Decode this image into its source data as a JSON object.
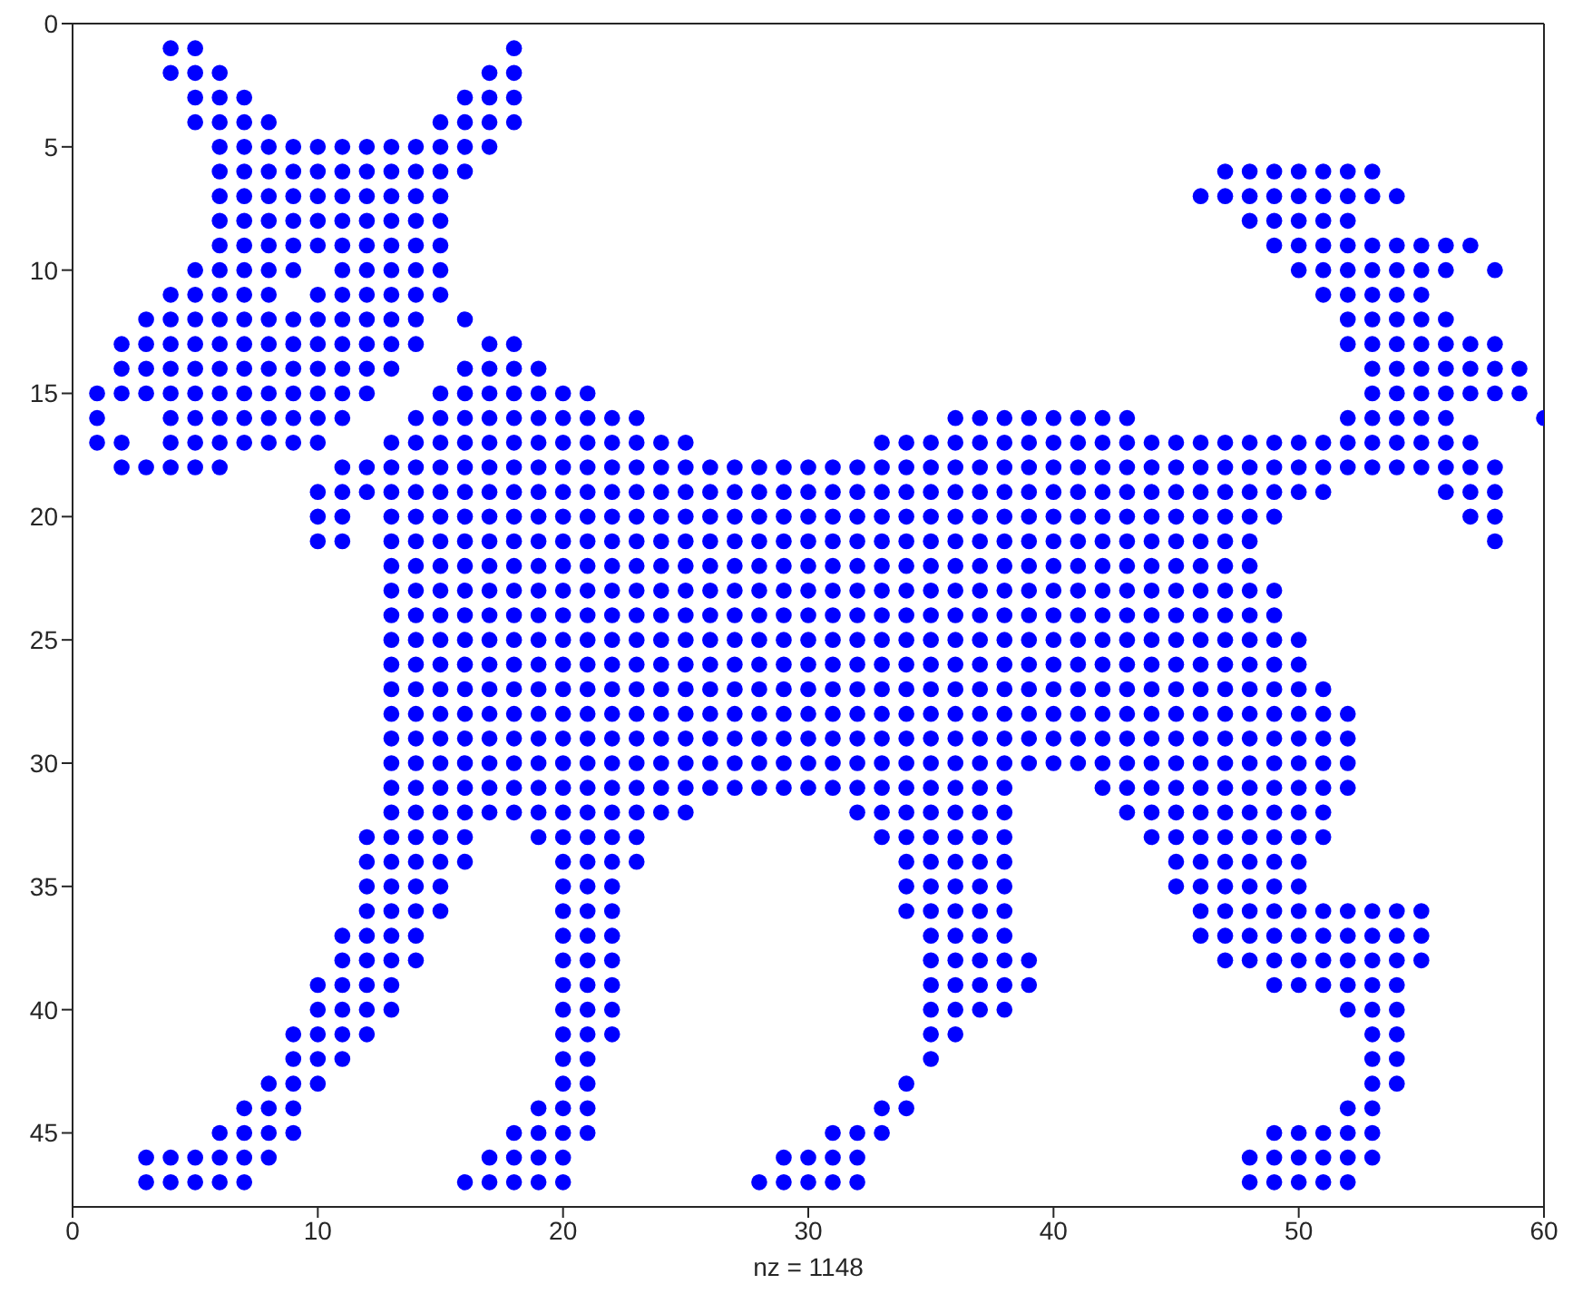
{
  "chart_data": {
    "type": "scatter",
    "xlabel": "nz = 1148",
    "xlim": [
      0,
      60
    ],
    "ylim": [
      48,
      0
    ],
    "xticks": [
      0,
      10,
      20,
      30,
      40,
      50,
      60
    ],
    "yticks": [
      0,
      5,
      10,
      15,
      20,
      25,
      30,
      35,
      40,
      45
    ],
    "marker": "circle",
    "series": [
      {
        "color": "#0000ff",
        "x": [
          4,
          5,
          18
        ],
        "values": [
          1,
          1,
          1
        ]
      },
      {
        "color": "#0000ff",
        "x": [
          4,
          5,
          6,
          17,
          18
        ],
        "values": [
          2,
          2,
          2,
          2,
          2
        ]
      },
      {
        "color": "#0000ff",
        "x": [
          5,
          6,
          7,
          16,
          17,
          18
        ],
        "values": [
          3,
          3,
          3,
          3,
          3,
          3
        ]
      },
      {
        "color": "#0000ff",
        "x": [
          5,
          6,
          7,
          8,
          15,
          16,
          17,
          18
        ],
        "values": [
          4,
          4,
          4,
          4,
          4,
          4,
          4,
          4
        ]
      },
      {
        "color": "#0000ff",
        "x": [
          6,
          7,
          8,
          9,
          10,
          11,
          12,
          13,
          14,
          15,
          16,
          17
        ],
        "values": [
          5,
          5,
          5,
          5,
          5,
          5,
          5,
          5,
          5,
          5,
          5,
          5
        ]
      },
      {
        "color": "#0000ff",
        "x": [
          6,
          7,
          8,
          9,
          10,
          11,
          12,
          13,
          14,
          15,
          16,
          47,
          48,
          49,
          50,
          51,
          52,
          53
        ],
        "values": [
          6,
          6,
          6,
          6,
          6,
          6,
          6,
          6,
          6,
          6,
          6,
          6,
          6,
          6,
          6,
          6,
          6,
          6
        ]
      },
      {
        "color": "#0000ff",
        "x": [
          6,
          7,
          8,
          9,
          10,
          11,
          12,
          13,
          14,
          15,
          46,
          47,
          48,
          49,
          50,
          51,
          52,
          53,
          54
        ],
        "values": [
          7,
          7,
          7,
          7,
          7,
          7,
          7,
          7,
          7,
          7,
          7,
          7,
          7,
          7,
          7,
          7,
          7,
          7,
          7
        ]
      },
      {
        "color": "#0000ff",
        "x": [
          6,
          7,
          8,
          9,
          10,
          11,
          12,
          13,
          14,
          15,
          48,
          49,
          50,
          51,
          52
        ],
        "values": [
          8,
          8,
          8,
          8,
          8,
          8,
          8,
          8,
          8,
          8,
          8,
          8,
          8,
          8,
          8
        ]
      },
      {
        "color": "#0000ff",
        "x": [
          6,
          7,
          8,
          9,
          10,
          11,
          12,
          13,
          14,
          15,
          49,
          50,
          51,
          52,
          53,
          54,
          55,
          56,
          57
        ],
        "values": [
          9,
          9,
          9,
          9,
          9,
          9,
          9,
          9,
          9,
          9,
          9,
          9,
          9,
          9,
          9,
          9,
          9,
          9,
          9
        ]
      },
      {
        "color": "#0000ff",
        "x": [
          5,
          6,
          7,
          8,
          9,
          11,
          12,
          13,
          14,
          15,
          50,
          51,
          52,
          53,
          54,
          55,
          56,
          58
        ],
        "values": [
          10,
          10,
          10,
          10,
          10,
          10,
          10,
          10,
          10,
          10,
          10,
          10,
          10,
          10,
          10,
          10,
          10,
          10
        ]
      },
      {
        "color": "#0000ff",
        "x": [
          4,
          5,
          6,
          7,
          8,
          10,
          11,
          12,
          13,
          14,
          15,
          51,
          52,
          53,
          54,
          55
        ],
        "values": [
          11,
          11,
          11,
          11,
          11,
          11,
          11,
          11,
          11,
          11,
          11,
          11,
          11,
          11,
          11,
          11
        ]
      },
      {
        "color": "#0000ff",
        "x": [
          3,
          4,
          5,
          6,
          7,
          8,
          9,
          10,
          11,
          12,
          13,
          14,
          16,
          52,
          53,
          54,
          55,
          56
        ],
        "values": [
          12,
          12,
          12,
          12,
          12,
          12,
          12,
          12,
          12,
          12,
          12,
          12,
          12,
          12,
          12,
          12,
          12,
          12
        ]
      },
      {
        "color": "#0000ff",
        "x": [
          2,
          3,
          4,
          5,
          6,
          7,
          8,
          9,
          10,
          11,
          12,
          13,
          14,
          17,
          18,
          52,
          53,
          54,
          55,
          56,
          57,
          58
        ],
        "values": [
          13,
          13,
          13,
          13,
          13,
          13,
          13,
          13,
          13,
          13,
          13,
          13,
          13,
          13,
          13,
          13,
          13,
          13,
          13,
          13,
          13,
          13
        ]
      },
      {
        "color": "#0000ff",
        "x": [
          2,
          3,
          4,
          5,
          6,
          7,
          8,
          9,
          10,
          11,
          12,
          13,
          16,
          17,
          18,
          19,
          53,
          54,
          55,
          56,
          57,
          58,
          59
        ],
        "values": [
          14,
          14,
          14,
          14,
          14,
          14,
          14,
          14,
          14,
          14,
          14,
          14,
          14,
          14,
          14,
          14,
          14,
          14,
          14,
          14,
          14,
          14,
          14
        ]
      },
      {
        "color": "#0000ff",
        "x": [
          1,
          2,
          3,
          4,
          5,
          6,
          7,
          8,
          9,
          10,
          11,
          12,
          15,
          16,
          17,
          18,
          19,
          20,
          21,
          53,
          54,
          55,
          56,
          57,
          58,
          59
        ],
        "values": [
          15,
          15,
          15,
          15,
          15,
          15,
          15,
          15,
          15,
          15,
          15,
          15,
          15,
          15,
          15,
          15,
          15,
          15,
          15,
          15,
          15,
          15,
          15,
          15,
          15,
          15
        ]
      },
      {
        "color": "#0000ff",
        "x": [
          1,
          4,
          5,
          6,
          7,
          8,
          9,
          10,
          11,
          14,
          15,
          16,
          17,
          18,
          19,
          20,
          21,
          22,
          23,
          36,
          37,
          38,
          39,
          40,
          41,
          42,
          43,
          52,
          53,
          54,
          55,
          56,
          60
        ],
        "values": [
          16,
          16,
          16,
          16,
          16,
          16,
          16,
          16,
          16,
          16,
          16,
          16,
          16,
          16,
          16,
          16,
          16,
          16,
          16,
          16,
          16,
          16,
          16,
          16,
          16,
          16,
          16,
          16,
          16,
          16,
          16,
          16,
          16
        ]
      },
      {
        "color": "#0000ff",
        "x": [
          1,
          2,
          4,
          5,
          6,
          7,
          8,
          9,
          10,
          13,
          14,
          15,
          16,
          17,
          18,
          19,
          20,
          21,
          22,
          23,
          24,
          25,
          33,
          34,
          35,
          36,
          37,
          38,
          39,
          40,
          41,
          42,
          43,
          44,
          45,
          46,
          47,
          48,
          49,
          50,
          51,
          52,
          53,
          54,
          55,
          56,
          57
        ],
        "values": [
          17,
          17,
          17,
          17,
          17,
          17,
          17,
          17,
          17,
          17,
          17,
          17,
          17,
          17,
          17,
          17,
          17,
          17,
          17,
          17,
          17,
          17,
          17,
          17,
          17,
          17,
          17,
          17,
          17,
          17,
          17,
          17,
          17,
          17,
          17,
          17,
          17,
          17,
          17,
          17,
          17,
          17,
          17,
          17,
          17,
          17,
          17
        ]
      },
      {
        "color": "#0000ff",
        "x": [
          2,
          3,
          4,
          5,
          6,
          11,
          12,
          13,
          14,
          15,
          16,
          17,
          18,
          19,
          20,
          21,
          22,
          23,
          24,
          25,
          26,
          27,
          28,
          29,
          30,
          31,
          32,
          33,
          34,
          35,
          36,
          37,
          38,
          39,
          40,
          41,
          42,
          43,
          44,
          45,
          46,
          47,
          48,
          49,
          50,
          51,
          52,
          53,
          54,
          55,
          56,
          57,
          58
        ],
        "values": [
          18,
          18,
          18,
          18,
          18,
          18,
          18,
          18,
          18,
          18,
          18,
          18,
          18,
          18,
          18,
          18,
          18,
          18,
          18,
          18,
          18,
          18,
          18,
          18,
          18,
          18,
          18,
          18,
          18,
          18,
          18,
          18,
          18,
          18,
          18,
          18,
          18,
          18,
          18,
          18,
          18,
          18,
          18,
          18,
          18,
          18,
          18,
          18,
          18,
          18,
          18,
          18,
          18
        ]
      },
      {
        "color": "#0000ff",
        "x": [
          10,
          11,
          12,
          13,
          14,
          15,
          16,
          17,
          18,
          19,
          20,
          21,
          22,
          23,
          24,
          25,
          26,
          27,
          28,
          29,
          30,
          31,
          32,
          33,
          34,
          35,
          36,
          37,
          38,
          39,
          40,
          41,
          42,
          43,
          44,
          45,
          46,
          47,
          48,
          49,
          50,
          51,
          56,
          57,
          58
        ],
        "values": [
          19,
          19,
          19,
          19,
          19,
          19,
          19,
          19,
          19,
          19,
          19,
          19,
          19,
          19,
          19,
          19,
          19,
          19,
          19,
          19,
          19,
          19,
          19,
          19,
          19,
          19,
          19,
          19,
          19,
          19,
          19,
          19,
          19,
          19,
          19,
          19,
          19,
          19,
          19,
          19,
          19,
          19,
          19,
          19,
          19
        ]
      },
      {
        "color": "#0000ff",
        "x": [
          10,
          11,
          13,
          14,
          15,
          16,
          17,
          18,
          19,
          20,
          21,
          22,
          23,
          24,
          25,
          26,
          27,
          28,
          29,
          30,
          31,
          32,
          33,
          34,
          35,
          36,
          37,
          38,
          39,
          40,
          41,
          42,
          43,
          44,
          45,
          46,
          47,
          48,
          49,
          57,
          58
        ],
        "values": [
          20,
          20,
          20,
          20,
          20,
          20,
          20,
          20,
          20,
          20,
          20,
          20,
          20,
          20,
          20,
          20,
          20,
          20,
          20,
          20,
          20,
          20,
          20,
          20,
          20,
          20,
          20,
          20,
          20,
          20,
          20,
          20,
          20,
          20,
          20,
          20,
          20,
          20,
          20,
          20,
          20
        ]
      },
      {
        "color": "#0000ff",
        "x": [
          10,
          11,
          13,
          14,
          15,
          16,
          17,
          18,
          19,
          20,
          21,
          22,
          23,
          24,
          25,
          26,
          27,
          28,
          29,
          30,
          31,
          32,
          33,
          34,
          35,
          36,
          37,
          38,
          39,
          40,
          41,
          42,
          43,
          44,
          45,
          46,
          47,
          48,
          58
        ],
        "values": [
          21,
          21,
          21,
          21,
          21,
          21,
          21,
          21,
          21,
          21,
          21,
          21,
          21,
          21,
          21,
          21,
          21,
          21,
          21,
          21,
          21,
          21,
          21,
          21,
          21,
          21,
          21,
          21,
          21,
          21,
          21,
          21,
          21,
          21,
          21,
          21,
          21,
          21,
          21
        ]
      },
      {
        "color": "#0000ff",
        "x": [
          13,
          14,
          15,
          16,
          17,
          18,
          19,
          20,
          21,
          22,
          23,
          24,
          25,
          26,
          27,
          28,
          29,
          30,
          31,
          32,
          33,
          34,
          35,
          36,
          37,
          38,
          39,
          40,
          41,
          42,
          43,
          44,
          45,
          46,
          47,
          48
        ],
        "values": [
          22,
          22,
          22,
          22,
          22,
          22,
          22,
          22,
          22,
          22,
          22,
          22,
          22,
          22,
          22,
          22,
          22,
          22,
          22,
          22,
          22,
          22,
          22,
          22,
          22,
          22,
          22,
          22,
          22,
          22,
          22,
          22,
          22,
          22,
          22,
          22
        ]
      },
      {
        "color": "#0000ff",
        "x": [
          13,
          14,
          15,
          16,
          17,
          18,
          19,
          20,
          21,
          22,
          23,
          24,
          25,
          26,
          27,
          28,
          29,
          30,
          31,
          32,
          33,
          34,
          35,
          36,
          37,
          38,
          39,
          40,
          41,
          42,
          43,
          44,
          45,
          46,
          47,
          48,
          49
        ],
        "values": [
          23,
          23,
          23,
          23,
          23,
          23,
          23,
          23,
          23,
          23,
          23,
          23,
          23,
          23,
          23,
          23,
          23,
          23,
          23,
          23,
          23,
          23,
          23,
          23,
          23,
          23,
          23,
          23,
          23,
          23,
          23,
          23,
          23,
          23,
          23,
          23,
          23
        ]
      },
      {
        "color": "#0000ff",
        "x": [
          13,
          14,
          15,
          16,
          17,
          18,
          19,
          20,
          21,
          22,
          23,
          24,
          25,
          26,
          27,
          28,
          29,
          30,
          31,
          32,
          33,
          34,
          35,
          36,
          37,
          38,
          39,
          40,
          41,
          42,
          43,
          44,
          45,
          46,
          47,
          48,
          49
        ],
        "values": [
          24,
          24,
          24,
          24,
          24,
          24,
          24,
          24,
          24,
          24,
          24,
          24,
          24,
          24,
          24,
          24,
          24,
          24,
          24,
          24,
          24,
          24,
          24,
          24,
          24,
          24,
          24,
          24,
          24,
          24,
          24,
          24,
          24,
          24,
          24,
          24,
          24
        ]
      },
      {
        "color": "#0000ff",
        "x": [
          13,
          14,
          15,
          16,
          17,
          18,
          19,
          20,
          21,
          22,
          23,
          24,
          25,
          26,
          27,
          28,
          29,
          30,
          31,
          32,
          33,
          34,
          35,
          36,
          37,
          38,
          39,
          40,
          41,
          42,
          43,
          44,
          45,
          46,
          47,
          48,
          49,
          50
        ],
        "values": [
          25,
          25,
          25,
          25,
          25,
          25,
          25,
          25,
          25,
          25,
          25,
          25,
          25,
          25,
          25,
          25,
          25,
          25,
          25,
          25,
          25,
          25,
          25,
          25,
          25,
          25,
          25,
          25,
          25,
          25,
          25,
          25,
          25,
          25,
          25,
          25,
          25,
          25
        ]
      },
      {
        "color": "#0000ff",
        "x": [
          13,
          14,
          15,
          16,
          17,
          18,
          19,
          20,
          21,
          22,
          23,
          24,
          25,
          26,
          27,
          28,
          29,
          30,
          31,
          32,
          33,
          34,
          35,
          36,
          37,
          38,
          39,
          40,
          41,
          42,
          43,
          44,
          45,
          46,
          47,
          48,
          49,
          50
        ],
        "values": [
          26,
          26,
          26,
          26,
          26,
          26,
          26,
          26,
          26,
          26,
          26,
          26,
          26,
          26,
          26,
          26,
          26,
          26,
          26,
          26,
          26,
          26,
          26,
          26,
          26,
          26,
          26,
          26,
          26,
          26,
          26,
          26,
          26,
          26,
          26,
          26,
          26,
          26
        ]
      },
      {
        "color": "#0000ff",
        "x": [
          13,
          14,
          15,
          16,
          17,
          18,
          19,
          20,
          21,
          22,
          23,
          24,
          25,
          26,
          27,
          28,
          29,
          30,
          31,
          32,
          33,
          34,
          35,
          36,
          37,
          38,
          39,
          40,
          41,
          42,
          43,
          44,
          45,
          46,
          47,
          48,
          49,
          50,
          51
        ],
        "values": [
          27,
          27,
          27,
          27,
          27,
          27,
          27,
          27,
          27,
          27,
          27,
          27,
          27,
          27,
          27,
          27,
          27,
          27,
          27,
          27,
          27,
          27,
          27,
          27,
          27,
          27,
          27,
          27,
          27,
          27,
          27,
          27,
          27,
          27,
          27,
          27,
          27,
          27,
          27
        ]
      },
      {
        "color": "#0000ff",
        "x": [
          13,
          14,
          15,
          16,
          17,
          18,
          19,
          20,
          21,
          22,
          23,
          24,
          25,
          26,
          27,
          28,
          29,
          30,
          31,
          32,
          33,
          34,
          35,
          36,
          37,
          38,
          39,
          40,
          41,
          42,
          43,
          44,
          45,
          46,
          47,
          48,
          49,
          50,
          51,
          52
        ],
        "values": [
          28,
          28,
          28,
          28,
          28,
          28,
          28,
          28,
          28,
          28,
          28,
          28,
          28,
          28,
          28,
          28,
          28,
          28,
          28,
          28,
          28,
          28,
          28,
          28,
          28,
          28,
          28,
          28,
          28,
          28,
          28,
          28,
          28,
          28,
          28,
          28,
          28,
          28,
          28,
          28
        ]
      },
      {
        "color": "#0000ff",
        "x": [
          13,
          14,
          15,
          16,
          17,
          18,
          19,
          20,
          21,
          22,
          23,
          24,
          25,
          26,
          27,
          28,
          29,
          30,
          31,
          32,
          33,
          34,
          35,
          36,
          37,
          38,
          39,
          40,
          41,
          42,
          43,
          44,
          45,
          46,
          47,
          48,
          49,
          50,
          51,
          52
        ],
        "values": [
          29,
          29,
          29,
          29,
          29,
          29,
          29,
          29,
          29,
          29,
          29,
          29,
          29,
          29,
          29,
          29,
          29,
          29,
          29,
          29,
          29,
          29,
          29,
          29,
          29,
          29,
          29,
          29,
          29,
          29,
          29,
          29,
          29,
          29,
          29,
          29,
          29,
          29,
          29,
          29
        ]
      },
      {
        "color": "#0000ff",
        "x": [
          13,
          14,
          15,
          16,
          17,
          18,
          19,
          20,
          21,
          22,
          23,
          24,
          25,
          26,
          27,
          28,
          29,
          30,
          31,
          32,
          33,
          34,
          35,
          36,
          37,
          38,
          39,
          40,
          41,
          42,
          43,
          44,
          45,
          46,
          47,
          48,
          49,
          50,
          51,
          52
        ],
        "values": [
          30,
          30,
          30,
          30,
          30,
          30,
          30,
          30,
          30,
          30,
          30,
          30,
          30,
          30,
          30,
          30,
          30,
          30,
          30,
          30,
          30,
          30,
          30,
          30,
          30,
          30,
          30,
          30,
          30,
          30,
          30,
          30,
          30,
          30,
          30,
          30,
          30,
          30,
          30,
          30
        ]
      },
      {
        "color": "#0000ff",
        "x": [
          13,
          14,
          15,
          16,
          17,
          18,
          19,
          20,
          21,
          22,
          23,
          24,
          25,
          26,
          27,
          28,
          29,
          30,
          31,
          32,
          33,
          34,
          35,
          36,
          37,
          38,
          42,
          43,
          44,
          45,
          46,
          47,
          48,
          49,
          50,
          51,
          52
        ],
        "values": [
          31,
          31,
          31,
          31,
          31,
          31,
          31,
          31,
          31,
          31,
          31,
          31,
          31,
          31,
          31,
          31,
          31,
          31,
          31,
          31,
          31,
          31,
          31,
          31,
          31,
          31,
          31,
          31,
          31,
          31,
          31,
          31,
          31,
          31,
          31,
          31,
          31
        ]
      },
      {
        "color": "#0000ff",
        "x": [
          13,
          14,
          15,
          16,
          17,
          18,
          19,
          20,
          21,
          22,
          23,
          24,
          25,
          32,
          33,
          34,
          35,
          36,
          37,
          38,
          43,
          44,
          45,
          46,
          47,
          48,
          49,
          50,
          51
        ],
        "values": [
          32,
          32,
          32,
          32,
          32,
          32,
          32,
          32,
          32,
          32,
          32,
          32,
          32,
          32,
          32,
          32,
          32,
          32,
          32,
          32,
          32,
          32,
          32,
          32,
          32,
          32,
          32,
          32,
          32
        ]
      },
      {
        "color": "#0000ff",
        "x": [
          12,
          13,
          14,
          15,
          16,
          19,
          20,
          21,
          22,
          23,
          33,
          34,
          35,
          36,
          37,
          38,
          44,
          45,
          46,
          47,
          48,
          49,
          50,
          51
        ],
        "values": [
          33,
          33,
          33,
          33,
          33,
          33,
          33,
          33,
          33,
          33,
          33,
          33,
          33,
          33,
          33,
          33,
          33,
          33,
          33,
          33,
          33,
          33,
          33,
          33
        ]
      },
      {
        "color": "#0000ff",
        "x": [
          12,
          13,
          14,
          15,
          16,
          20,
          21,
          22,
          23,
          34,
          35,
          36,
          37,
          38,
          45,
          46,
          47,
          48,
          49,
          50
        ],
        "values": [
          34,
          34,
          34,
          34,
          34,
          34,
          34,
          34,
          34,
          34,
          34,
          34,
          34,
          34,
          34,
          34,
          34,
          34,
          34,
          34
        ]
      },
      {
        "color": "#0000ff",
        "x": [
          12,
          13,
          14,
          15,
          20,
          21,
          22,
          34,
          35,
          36,
          37,
          38,
          45,
          46,
          47,
          48,
          49,
          50
        ],
        "values": [
          35,
          35,
          35,
          35,
          35,
          35,
          35,
          35,
          35,
          35,
          35,
          35,
          35,
          35,
          35,
          35,
          35,
          35
        ]
      },
      {
        "color": "#0000ff",
        "x": [
          12,
          13,
          14,
          15,
          20,
          21,
          22,
          34,
          35,
          36,
          37,
          38,
          46,
          47,
          48,
          49,
          50,
          51,
          52,
          53,
          54,
          55
        ],
        "values": [
          36,
          36,
          36,
          36,
          36,
          36,
          36,
          36,
          36,
          36,
          36,
          36,
          36,
          36,
          36,
          36,
          36,
          36,
          36,
          36,
          36,
          36
        ]
      },
      {
        "color": "#0000ff",
        "x": [
          11,
          12,
          13,
          14,
          20,
          21,
          22,
          35,
          36,
          37,
          38,
          46,
          47,
          48,
          49,
          50,
          51,
          52,
          53,
          54,
          55
        ],
        "values": [
          37,
          37,
          37,
          37,
          37,
          37,
          37,
          37,
          37,
          37,
          37,
          37,
          37,
          37,
          37,
          37,
          37,
          37,
          37,
          37,
          37
        ]
      },
      {
        "color": "#0000ff",
        "x": [
          11,
          12,
          13,
          14,
          20,
          21,
          22,
          35,
          36,
          37,
          38,
          39,
          47,
          48,
          49,
          50,
          51,
          52,
          53,
          54,
          55
        ],
        "values": [
          38,
          38,
          38,
          38,
          38,
          38,
          38,
          38,
          38,
          38,
          38,
          38,
          38,
          38,
          38,
          38,
          38,
          38,
          38,
          38,
          38
        ]
      },
      {
        "color": "#0000ff",
        "x": [
          10,
          11,
          12,
          13,
          20,
          21,
          22,
          35,
          36,
          37,
          38,
          39,
          49,
          50,
          51,
          52,
          53,
          54
        ],
        "values": [
          39,
          39,
          39,
          39,
          39,
          39,
          39,
          39,
          39,
          39,
          39,
          39,
          39,
          39,
          39,
          39,
          39,
          39
        ]
      },
      {
        "color": "#0000ff",
        "x": [
          10,
          11,
          12,
          13,
          20,
          21,
          22,
          35,
          36,
          37,
          38,
          52,
          53,
          54
        ],
        "values": [
          40,
          40,
          40,
          40,
          40,
          40,
          40,
          40,
          40,
          40,
          40,
          40,
          40,
          40
        ]
      },
      {
        "color": "#0000ff",
        "x": [
          9,
          10,
          11,
          12,
          20,
          21,
          22,
          35,
          36,
          53,
          54
        ],
        "values": [
          41,
          41,
          41,
          41,
          41,
          41,
          41,
          41,
          41,
          41,
          41
        ]
      },
      {
        "color": "#0000ff",
        "x": [
          9,
          10,
          11,
          20,
          21,
          35,
          53,
          54
        ],
        "values": [
          42,
          42,
          42,
          42,
          42,
          42,
          42,
          42
        ]
      },
      {
        "color": "#0000ff",
        "x": [
          8,
          9,
          10,
          20,
          21,
          34,
          53,
          54
        ],
        "values": [
          43,
          43,
          43,
          43,
          43,
          43,
          43,
          43
        ]
      },
      {
        "color": "#0000ff",
        "x": [
          7,
          8,
          9,
          19,
          20,
          21,
          33,
          34,
          52,
          53
        ],
        "values": [
          44,
          44,
          44,
          44,
          44,
          44,
          44,
          44,
          44,
          44
        ]
      },
      {
        "color": "#0000ff",
        "x": [
          6,
          7,
          8,
          9,
          18,
          19,
          20,
          21,
          31,
          32,
          33,
          49,
          50,
          51,
          52,
          53
        ],
        "values": [
          45,
          45,
          45,
          45,
          45,
          45,
          45,
          45,
          45,
          45,
          45,
          45,
          45,
          45,
          45,
          45
        ]
      },
      {
        "color": "#0000ff",
        "x": [
          3,
          4,
          5,
          6,
          7,
          8,
          17,
          18,
          19,
          20,
          29,
          30,
          31,
          32,
          48,
          49,
          50,
          51,
          52,
          53
        ],
        "values": [
          46,
          46,
          46,
          46,
          46,
          46,
          46,
          46,
          46,
          46,
          46,
          46,
          46,
          46,
          46,
          46,
          46,
          46,
          46,
          46
        ]
      },
      {
        "color": "#0000ff",
        "x": [
          3,
          4,
          5,
          6,
          7,
          16,
          17,
          18,
          19,
          20,
          28,
          29,
          30,
          31,
          32,
          48,
          49,
          50,
          51,
          52
        ],
        "values": [
          47,
          47,
          47,
          47,
          47,
          47,
          47,
          47,
          47,
          47,
          47,
          47,
          47,
          47,
          47,
          47,
          47,
          47,
          47,
          47
        ]
      }
    ]
  }
}
